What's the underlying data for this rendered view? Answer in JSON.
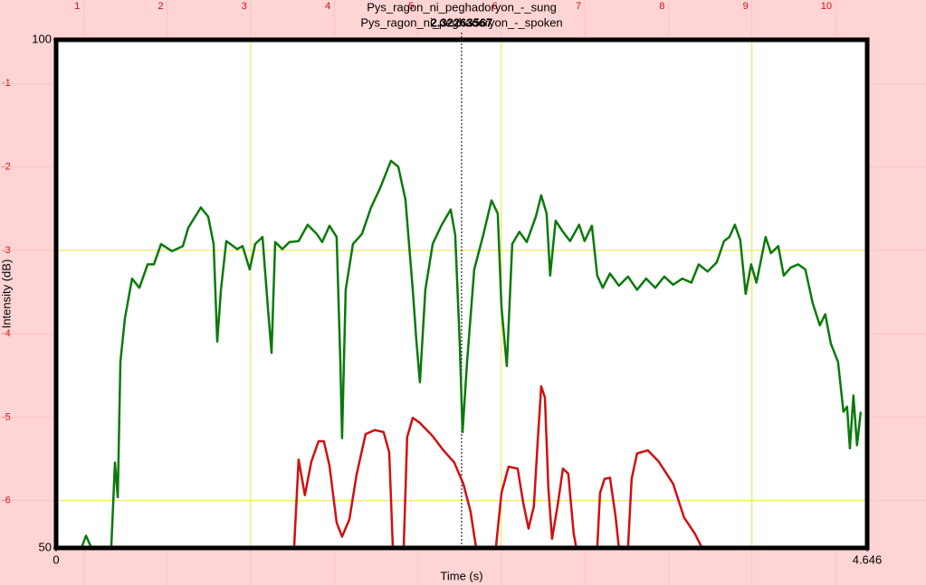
{
  "chart_data": {
    "type": "line",
    "x_label": "Time (s)",
    "y_label": "Intensity (dB)",
    "xlim": [
      0,
      4.646
    ],
    "xticks": [
      0,
      4.646
    ],
    "ylim": [
      50,
      100
    ],
    "yticks": [
      50,
      100
    ],
    "cursor": 2.32263567,
    "ruler": {
      "top": [
        "1",
        "2",
        "3",
        "4",
        "5",
        "6",
        "7",
        "8",
        "9",
        "10"
      ],
      "left": [
        "-1",
        "-2",
        "-3",
        "-4",
        "-5",
        "-6"
      ]
    },
    "series": [
      {
        "name": "Pys_ragon_ni_peghadoryon_-_sung",
        "color": "#0a7a0a",
        "x": [
          0.104,
          0.145,
          0.171,
          0.202,
          0.316,
          0.337,
          0.353,
          0.368,
          0.394,
          0.435,
          0.477,
          0.524,
          0.56,
          0.601,
          0.664,
          0.726,
          0.757,
          0.829,
          0.871,
          0.902,
          0.923,
          0.944,
          0.975,
          1.037,
          1.068,
          1.109,
          1.14,
          1.182,
          1.213,
          1.234,
          1.255,
          1.296,
          1.337,
          1.389,
          1.441,
          1.493,
          1.524,
          1.566,
          1.607,
          1.628,
          1.638,
          1.659,
          1.7,
          1.752,
          1.804,
          1.856,
          1.918,
          1.96,
          2.001,
          2.043,
          2.063,
          2.084,
          2.115,
          2.157,
          2.209,
          2.26,
          2.286,
          2.312,
          2.328,
          2.354,
          2.395,
          2.447,
          2.494,
          2.53,
          2.551,
          2.582,
          2.613,
          2.654,
          2.696,
          2.748,
          2.779,
          2.81,
          2.83,
          2.861,
          2.903,
          2.944,
          2.996,
          3.027,
          3.069,
          3.1,
          3.131,
          3.173,
          3.224,
          3.276,
          3.328,
          3.38,
          3.432,
          3.484,
          3.535,
          3.587,
          3.639,
          3.681,
          3.732,
          3.784,
          3.826,
          3.857,
          3.888,
          3.919,
          3.95,
          3.981,
          4.012,
          4.064,
          4.095,
          4.137,
          4.168,
          4.209,
          4.251,
          4.292,
          4.334,
          4.375,
          4.406,
          4.438,
          4.479,
          4.51,
          4.531,
          4.547,
          4.567,
          4.588,
          4.609
        ],
        "values": [
          50,
          50,
          51.2,
          50,
          50,
          58.4,
          55,
          68.3,
          72.6,
          76.5,
          75.6,
          77.9,
          77.9,
          79.9,
          79.2,
          79.7,
          81.5,
          83.5,
          82.6,
          79.9,
          70.3,
          75.4,
          80.2,
          79.4,
          79.7,
          77.4,
          79.9,
          80.6,
          73.7,
          69.2,
          80.1,
          79.4,
          80.1,
          80.2,
          81.8,
          80.9,
          80.1,
          81.7,
          80.6,
          68.3,
          60.8,
          75.4,
          79.9,
          80.9,
          83.5,
          85.4,
          88.1,
          87.5,
          84.3,
          75.4,
          70.5,
          66.3,
          75.4,
          79.9,
          81.8,
          83.3,
          80.8,
          70.1,
          61.4,
          68.3,
          77.4,
          80.8,
          84.2,
          82.9,
          73.7,
          67.9,
          79.9,
          81.1,
          80.1,
          82.6,
          84.7,
          82.9,
          76.8,
          82.2,
          81.1,
          80.2,
          81.8,
          80.2,
          81.7,
          76.8,
          75.6,
          77,
          75.8,
          76.7,
          75.4,
          76.5,
          75.6,
          76.7,
          75.9,
          76.5,
          76.1,
          77.9,
          77.2,
          78.1,
          80.2,
          80.6,
          81.8,
          80.3,
          75,
          77.9,
          76.1,
          80.6,
          79,
          79.7,
          76.8,
          77.6,
          77.9,
          77.4,
          74.1,
          71.9,
          73,
          70.1,
          68.3,
          63.4,
          63.9,
          59.8,
          65,
          60.1,
          63.4
        ]
      },
      {
        "name": "Pys_ragon_ni_peghadoryon_-_spoken",
        "color": "#d01010",
        "x": [
          1.363,
          1.389,
          1.425,
          1.462,
          1.503,
          1.534,
          1.566,
          1.607,
          1.638,
          1.68,
          1.721,
          1.773,
          1.825,
          1.876,
          1.908,
          1.929,
          1.96,
          1.991,
          2.011,
          2.043,
          2.084,
          2.157,
          2.219,
          2.281,
          2.333,
          2.374,
          2.406,
          2.46,
          2.519,
          2.551,
          2.592,
          2.644,
          2.675,
          2.706,
          2.737,
          2.758,
          2.779,
          2.8,
          2.82,
          2.841,
          2.872,
          2.903,
          2.934,
          2.965,
          2.98,
          3.04,
          3.1,
          3.116,
          3.142,
          3.173,
          3.204,
          3.224,
          3.25,
          3.276,
          3.297,
          3.328,
          3.39,
          3.452,
          3.535,
          3.597,
          3.659,
          3.7
        ],
        "values": [
          50,
          58.7,
          55.2,
          58.5,
          60.5,
          60.5,
          58.1,
          52.5,
          51.1,
          52.8,
          57.2,
          61.2,
          61.6,
          61.4,
          59.4,
          50,
          null,
          50,
          60.9,
          62.8,
          62.3,
          61,
          59.6,
          58.4,
          56.3,
          53.6,
          50,
          null,
          50,
          55.4,
          58,
          57.8,
          54.5,
          51.9,
          54.1,
          60.3,
          65.9,
          64.8,
          55.9,
          50.9,
          54.1,
          57.8,
          57.3,
          51.4,
          50,
          null,
          50,
          55.4,
          56.8,
          56.9,
          53.2,
          50,
          null,
          50,
          56.8,
          59.3,
          59.6,
          58.5,
          56.3,
          53,
          51.4,
          50
        ]
      }
    ]
  }
}
